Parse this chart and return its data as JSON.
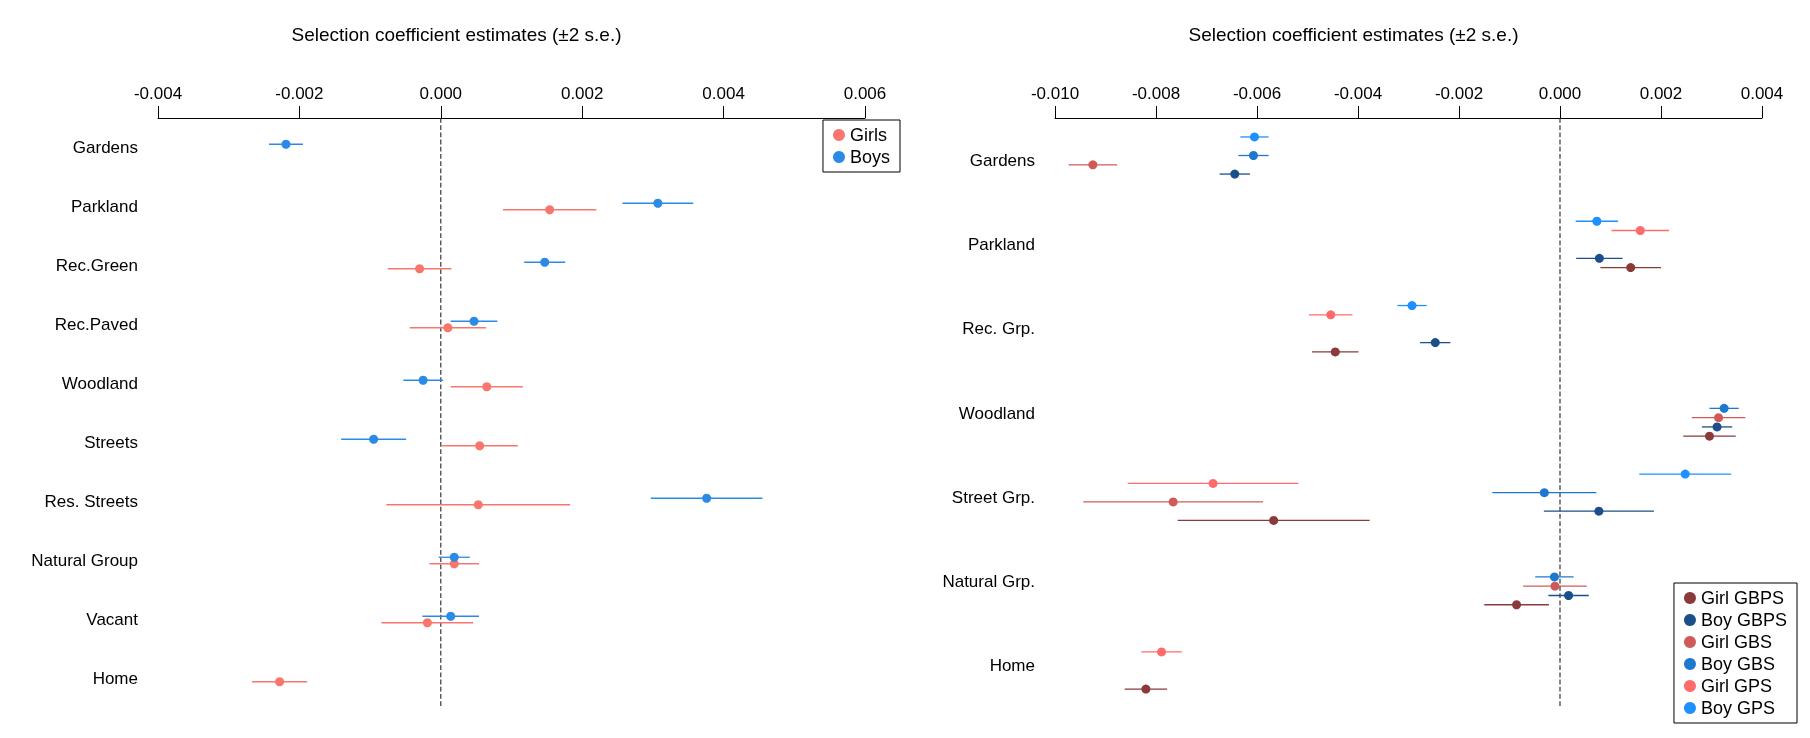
{
  "chart_data": [
    {
      "type": "scatter",
      "title": "Selection coefficient estimates (±2 s.e.)",
      "orientation": "horizontal",
      "categories": [
        "Gardens",
        "Parkland",
        "Rec.Green",
        "Rec.Paved",
        "Woodland",
        "Streets",
        "Res. Streets",
        "Natural Group",
        "Vacant",
        "Home"
      ],
      "xlim": [
        -0.004,
        0.006
      ],
      "xticks": [
        {
          "value": -0.004,
          "label": "-0.004"
        },
        {
          "value": -0.002,
          "label": "-0.002"
        },
        {
          "value": 0,
          "label": "0.000"
        },
        {
          "value": 0.002,
          "label": "0.002"
        },
        {
          "value": 0.004,
          "label": "0.004"
        },
        {
          "value": 0.006,
          "label": "0.006"
        }
      ],
      "grid": false,
      "legend": "top right",
      "marker": "circle",
      "ref_lines": [
        {
          "axis": "x",
          "value": 0,
          "line_style": "dashed",
          "color": "#333333"
        }
      ],
      "series": [
        {
          "name": "Girls",
          "color": "#f8766d",
          "values": [
            null,
            0.00154,
            -0.0003,
            0.0001,
            0.00065,
            0.00055,
            0.00053,
            0.00019,
            -0.00019,
            -0.00228
          ],
          "errors": [
            null,
            0.00066,
            0.00045,
            0.00054,
            0.00051,
            0.00054,
            0.0013,
            0.00035,
            0.00065,
            0.00039
          ]
        },
        {
          "name": "Boys",
          "color": "#2b8ae6",
          "values": [
            -0.00219,
            0.00307,
            0.00147,
            0.00047,
            -0.00025,
            -0.00095,
            0.00376,
            0.00019,
            0.00014,
            null
          ],
          "errors": [
            0.00024,
            0.0005,
            0.00029,
            0.00033,
            0.00028,
            0.00046,
            0.00079,
            0.00022,
            0.0004,
            null
          ]
        }
      ]
    },
    {
      "type": "scatter",
      "title": "Selection coefficient estimates (±2 s.e.)",
      "orientation": "horizontal",
      "categories": [
        "Gardens",
        "Parkland",
        "Rec. Grp.",
        "Woodland",
        "Street Grp.",
        "Natural Grp.",
        "Home"
      ],
      "xlim": [
        -0.01,
        0.004
      ],
      "xticks": [
        {
          "value": -0.01,
          "label": "-0.010"
        },
        {
          "value": -0.008,
          "label": "-0.008"
        },
        {
          "value": -0.006,
          "label": "-0.006"
        },
        {
          "value": -0.004,
          "label": "-0.004"
        },
        {
          "value": -0.002,
          "label": "-0.002"
        },
        {
          "value": 0,
          "label": "0.000"
        },
        {
          "value": 0.002,
          "label": "0.002"
        },
        {
          "value": 0.004,
          "label": "0.004"
        }
      ],
      "grid": false,
      "legend": "bottom right",
      "marker": "circle",
      "ref_lines": [
        {
          "axis": "x",
          "value": 0,
          "line_style": "dashed",
          "color": "#333333"
        }
      ],
      "series": [
        {
          "name": "Girl GBPS",
          "color": "#8b3a3a",
          "values": [
            null,
            0.0014,
            -0.00445,
            0.00296,
            -0.00567,
            -0.00086,
            -0.0082
          ],
          "errors": [
            null,
            0.0006,
            0.00046,
            0.00052,
            0.0019,
            0.00064,
            0.00042
          ]
        },
        {
          "name": "Boy GBPS",
          "color": "#1a4f8b",
          "values": [
            -0.00644,
            0.00078,
            -0.00247,
            0.00311,
            0.00077,
            0.00017,
            null
          ],
          "errors": [
            0.0003,
            0.00046,
            0.0003,
            0.0003,
            0.00109,
            0.0004,
            null
          ]
        },
        {
          "name": "Girl GBS",
          "color": "#d05a5a",
          "values": [
            -0.00925,
            null,
            null,
            0.00314,
            -0.00766,
            -0.0001,
            null
          ],
          "errors": [
            0.00048,
            null,
            null,
            0.00053,
            0.00178,
            0.00063,
            null
          ]
        },
        {
          "name": "Boy GBS",
          "color": "#1e78d0",
          "values": [
            -0.00607,
            null,
            null,
            0.00325,
            -0.00031,
            -0.00011,
            null
          ],
          "errors": [
            0.0003,
            null,
            null,
            0.00029,
            0.00103,
            0.00038,
            null
          ]
        },
        {
          "name": "Girl GPS",
          "color": "#ff6b6b",
          "values": [
            null,
            0.00159,
            -0.00454,
            null,
            -0.00687,
            null,
            -0.00789
          ],
          "errors": [
            null,
            0.00057,
            0.00043,
            null,
            0.00169,
            null,
            0.0004
          ]
        },
        {
          "name": "Boy GPS",
          "color": "#1e90ff",
          "values": [
            -0.00605,
            0.00073,
            -0.00293,
            null,
            0.00248,
            null,
            null
          ],
          "errors": [
            0.00028,
            0.00042,
            0.00029,
            null,
            0.00091,
            null,
            null
          ]
        }
      ]
    }
  ]
}
